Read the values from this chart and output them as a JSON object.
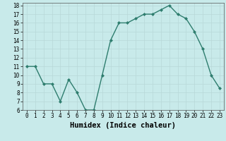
{
  "x": [
    0,
    1,
    2,
    3,
    4,
    5,
    6,
    7,
    8,
    9,
    10,
    11,
    12,
    13,
    14,
    15,
    16,
    17,
    18,
    19,
    20,
    21,
    22,
    23
  ],
  "y": [
    11,
    11,
    9,
    9,
    7,
    9.5,
    8,
    6,
    6,
    10,
    14,
    16,
    16,
    16.5,
    17,
    17,
    17.5,
    18,
    17,
    16.5,
    15,
    13,
    10,
    8.5
  ],
  "line_color": "#2e7d6e",
  "marker": "D",
  "bg_color": "#c8eaea",
  "grid_color": "#b8d8d8",
  "xlabel": "Humidex (Indice chaleur)",
  "ylim": [
    6,
    18
  ],
  "xlim": [
    -0.5,
    23.5
  ],
  "yticks": [
    6,
    7,
    8,
    9,
    10,
    11,
    12,
    13,
    14,
    15,
    16,
    17,
    18
  ],
  "xticks": [
    0,
    1,
    2,
    3,
    4,
    5,
    6,
    7,
    8,
    9,
    10,
    11,
    12,
    13,
    14,
    15,
    16,
    17,
    18,
    19,
    20,
    21,
    22,
    23
  ],
  "tick_fontsize": 5.5,
  "xlabel_fontsize": 7.5
}
